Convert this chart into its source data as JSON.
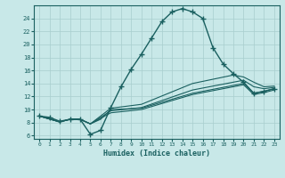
{
  "xlabel": "Humidex (Indice chaleur)",
  "ylabel": "",
  "bg_color": "#c8e8e8",
  "grid_color": "#a8cece",
  "line_color": "#1a6060",
  "xlim": [
    -0.5,
    23.5
  ],
  "ylim": [
    5.5,
    26.0
  ],
  "xticks": [
    0,
    1,
    2,
    3,
    4,
    5,
    6,
    7,
    8,
    9,
    10,
    11,
    12,
    13,
    14,
    15,
    16,
    17,
    18,
    19,
    20,
    21,
    22,
    23
  ],
  "yticks": [
    6,
    8,
    10,
    12,
    14,
    16,
    18,
    20,
    22,
    24
  ],
  "line1_x": [
    0,
    1,
    2,
    3,
    4,
    5,
    6,
    7,
    8,
    9,
    10,
    11,
    12,
    13,
    14,
    15,
    16,
    17,
    18,
    19,
    20,
    21,
    22,
    23
  ],
  "line1_y": [
    9.0,
    8.8,
    8.2,
    8.5,
    8.5,
    6.2,
    6.8,
    10.3,
    13.5,
    16.2,
    18.5,
    21.0,
    23.5,
    25.0,
    25.5,
    25.0,
    24.0,
    19.5,
    17.0,
    15.5,
    14.2,
    12.5,
    12.8,
    13.2
  ],
  "line2_x": [
    0,
    2,
    3,
    4,
    5,
    6,
    7,
    10,
    15,
    20,
    21,
    22,
    23
  ],
  "line2_y": [
    9.0,
    8.1,
    8.5,
    8.5,
    7.8,
    8.5,
    10.0,
    10.2,
    12.5,
    14.0,
    12.5,
    12.8,
    13.2
  ],
  "line3_x": [
    0,
    2,
    3,
    4,
    5,
    7,
    10,
    15,
    20,
    21,
    22,
    23
  ],
  "line3_y": [
    9.0,
    8.1,
    8.5,
    8.5,
    7.8,
    9.5,
    10.0,
    12.3,
    13.8,
    12.3,
    12.6,
    13.0
  ],
  "line4_x": [
    0,
    2,
    3,
    4,
    5,
    7,
    10,
    15,
    20,
    21,
    22,
    23
  ],
  "line4_y": [
    9.0,
    8.1,
    8.5,
    8.5,
    7.8,
    9.8,
    10.3,
    13.0,
    14.5,
    13.5,
    13.2,
    13.4
  ],
  "line5_x": [
    0,
    2,
    3,
    4,
    5,
    7,
    10,
    15,
    19,
    20,
    21,
    22,
    23
  ],
  "line5_y": [
    9.0,
    8.1,
    8.5,
    8.5,
    7.8,
    10.2,
    10.8,
    14.0,
    15.3,
    15.0,
    14.2,
    13.5,
    13.6
  ]
}
